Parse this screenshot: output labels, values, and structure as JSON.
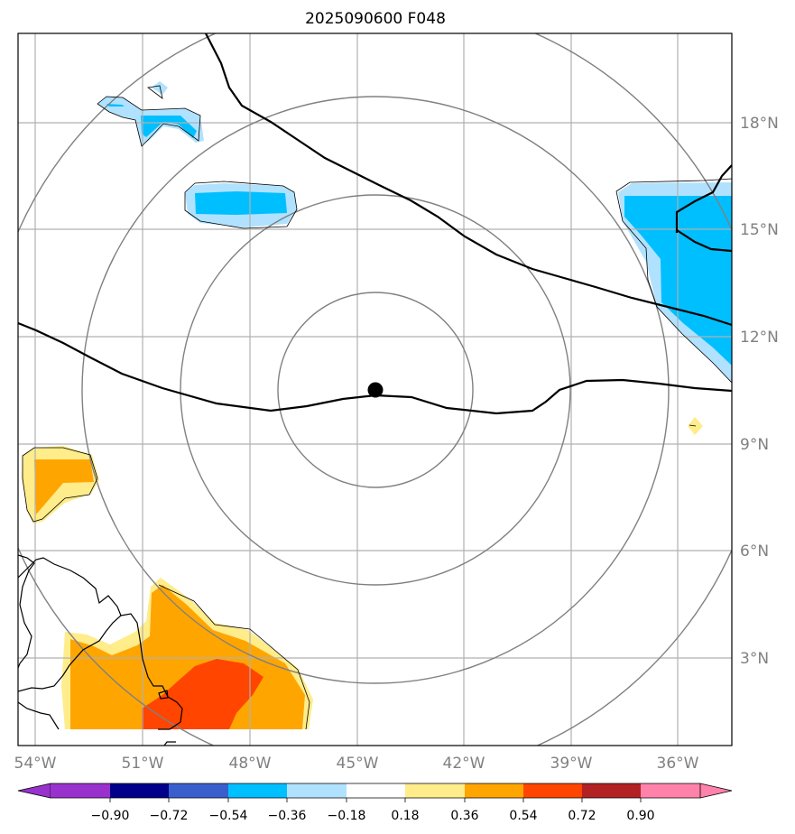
{
  "map": {
    "title": "2025090600 F048",
    "lon_labels": [
      "54°W",
      "51°W",
      "48°W",
      "45°W",
      "42°W",
      "39°W",
      "36°W"
    ],
    "lat_labels": [
      "18°N",
      "15°N",
      "12°N",
      "9°N",
      "6°N",
      "3°N"
    ],
    "center_marker": {
      "lon": -44.5,
      "lat": 10.5
    },
    "range_rings": 4
  },
  "colorbar": {
    "ticks": [
      "−0.90",
      "−0.72",
      "−0.54",
      "−0.36",
      "−0.18",
      "0.18",
      "0.36",
      "0.54",
      "0.72",
      "0.90"
    ],
    "colors": [
      "#9932cc",
      "#00008b",
      "#3a5fcd",
      "#00bfff",
      "#b0e2ff",
      "#ffffff",
      "#ffec8b",
      "#ffa500",
      "#ff4500",
      "#b22222",
      "#ff82ab"
    ]
  }
}
